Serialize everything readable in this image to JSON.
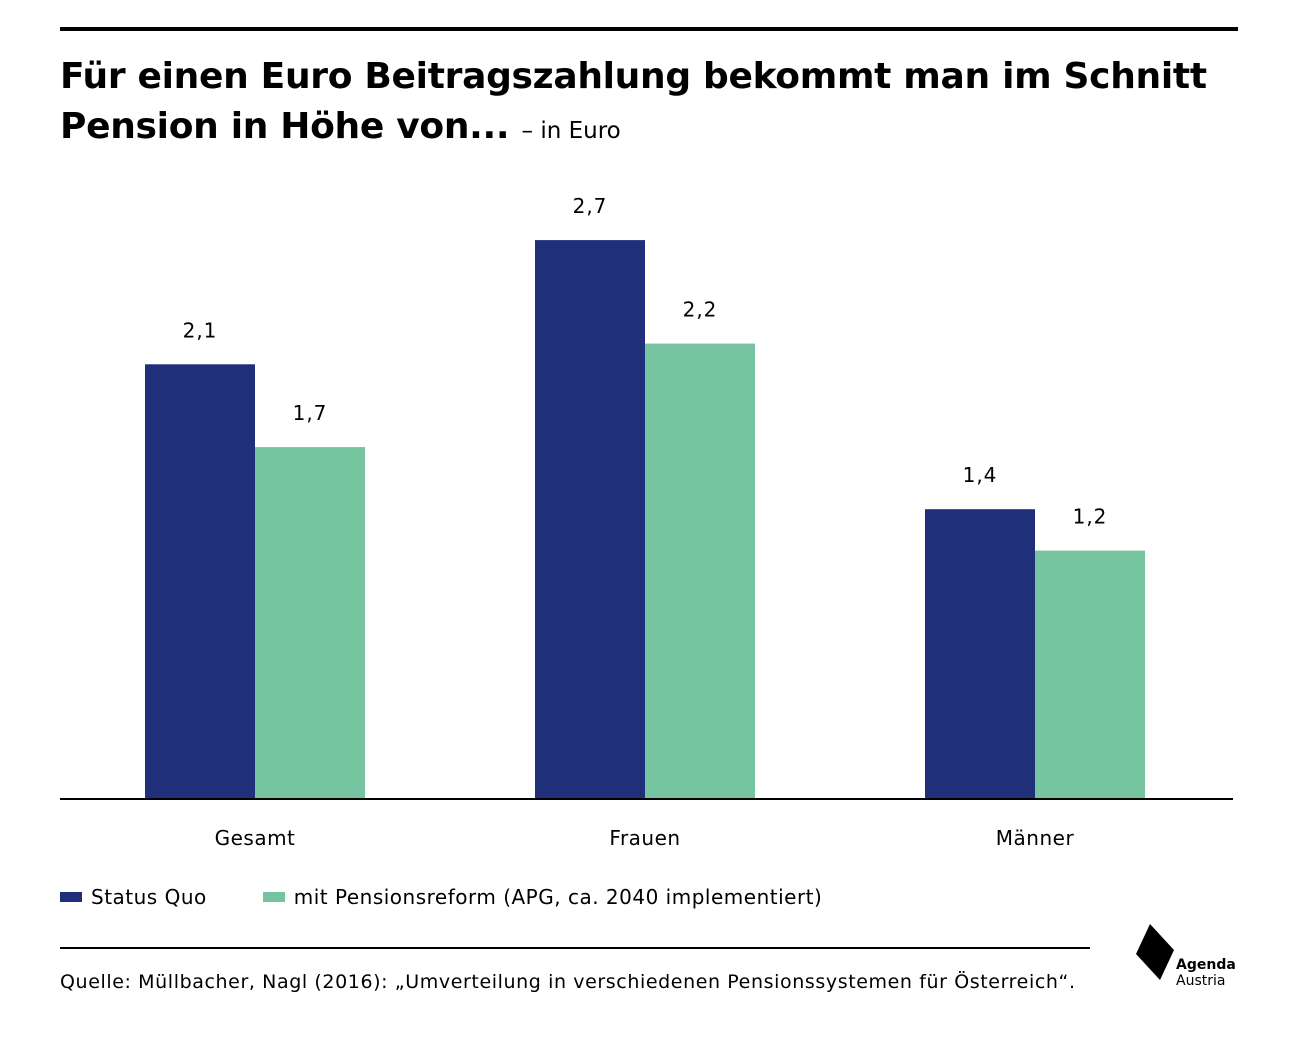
{
  "title": {
    "main": "Für einen Euro Beitragszahlung bekommt man im Schnitt Pension in Höhe von...",
    "unit": "– in Euro"
  },
  "colors": {
    "status_quo": "#1F2F7A",
    "reform": "#76C3A0",
    "text": "#000000"
  },
  "chart_data": {
    "type": "bar",
    "categories": [
      "Gesamt",
      "Frauen",
      "Männer"
    ],
    "series": [
      {
        "name": "Status Quo",
        "values": [
          2.1,
          2.7,
          1.4
        ],
        "labels": [
          "2,1",
          "2,7",
          "1,4"
        ]
      },
      {
        "name": "mit Pensionsreform (APG, ca. 2040 implementiert)",
        "values": [
          1.7,
          2.2,
          1.2
        ],
        "labels": [
          "1,7",
          "2,2",
          "1,2"
        ]
      }
    ],
    "ylim": [
      0,
      2.7
    ],
    "grid": false,
    "legend": "bottom-left"
  },
  "source": "Quelle: Müllbacher, Nagl (2016): „Umverteilung in verschiedenen Pensionssystemen für Österreich“.",
  "logo": {
    "line1": "Agenda",
    "line2": "Austria",
    "icon": "agenda-austria-logo-icon"
  }
}
